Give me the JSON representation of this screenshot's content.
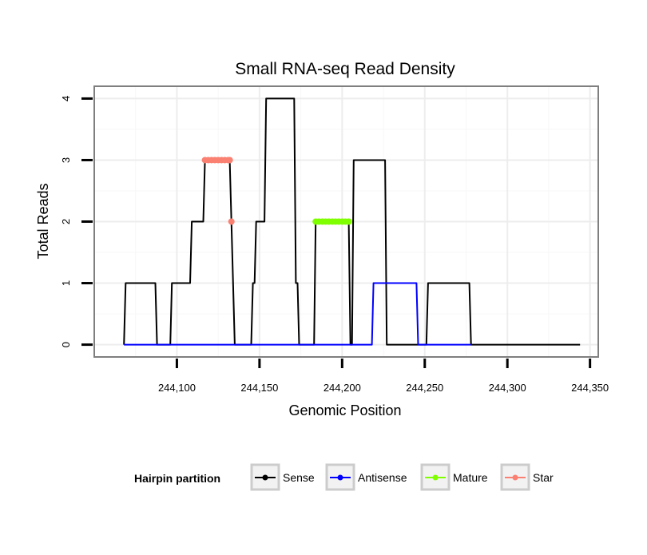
{
  "chart_data": {
    "type": "line",
    "title": "Small RNA-seq Read Density",
    "xlabel": "Genomic Position",
    "ylabel": "Total Reads",
    "xlim": [
      244050,
      244355
    ],
    "ylim": [
      -0.2,
      4.2
    ],
    "x_ticks": [
      244100,
      244150,
      244200,
      244250,
      244300,
      244350
    ],
    "x_tick_labels": [
      "244,100",
      "244,150",
      "244,200",
      "244,250",
      "244,300",
      "244,350"
    ],
    "y_ticks": [
      0,
      1,
      2,
      3,
      4
    ],
    "y_tick_labels": [
      "0",
      "1",
      "2",
      "3",
      "4"
    ],
    "grid": true,
    "legend": {
      "title": "Hairpin partition",
      "placement": "bottom",
      "entries": [
        "Sense",
        "Antisense",
        "Mature",
        "Star"
      ]
    },
    "series": [
      {
        "name": "Sense",
        "style": "line",
        "color": "#000000",
        "x": [
          244068,
          244069,
          244087,
          244088,
          244096,
          244097,
          244108,
          244109,
          244116,
          244117,
          244132,
          244133,
          244134,
          244135,
          244145,
          244146,
          244147,
          244148,
          244149,
          244150,
          244153,
          244154,
          244171,
          244172,
          244173,
          244174,
          244183,
          244184,
          244204,
          244205,
          244206,
          244207,
          244226,
          244227,
          244251,
          244252,
          244277,
          244278,
          244344
        ],
        "values": [
          0,
          1,
          1,
          0,
          0,
          1,
          1,
          2,
          2,
          3,
          3,
          2,
          1,
          0,
          0,
          1,
          1,
          2,
          2,
          2,
          2,
          4,
          4,
          1,
          1,
          0,
          0,
          2,
          2,
          0,
          0,
          3,
          3,
          0,
          0,
          1,
          1,
          0,
          0
        ]
      },
      {
        "name": "Antisense",
        "style": "line",
        "color": "#0000ff",
        "x": [
          244068,
          244218,
          244219,
          244245,
          244246,
          244278
        ],
        "values": [
          0,
          0,
          1,
          1,
          0,
          0
        ]
      },
      {
        "name": "Mature",
        "style": "points",
        "color": "#7fff00",
        "x": [
          244184,
          244186,
          244188,
          244190,
          244192,
          244194,
          244196,
          244198,
          244200,
          244202,
          244204
        ],
        "values": [
          2,
          2,
          2,
          2,
          2,
          2,
          2,
          2,
          2,
          2,
          2
        ]
      },
      {
        "name": "Star",
        "style": "points",
        "color": "#fa8072",
        "x": [
          244117,
          244119,
          244121,
          244123,
          244125,
          244127,
          244129,
          244131,
          244132,
          244133
        ],
        "values": [
          3,
          3,
          3,
          3,
          3,
          3,
          3,
          3,
          3,
          2
        ]
      }
    ]
  }
}
